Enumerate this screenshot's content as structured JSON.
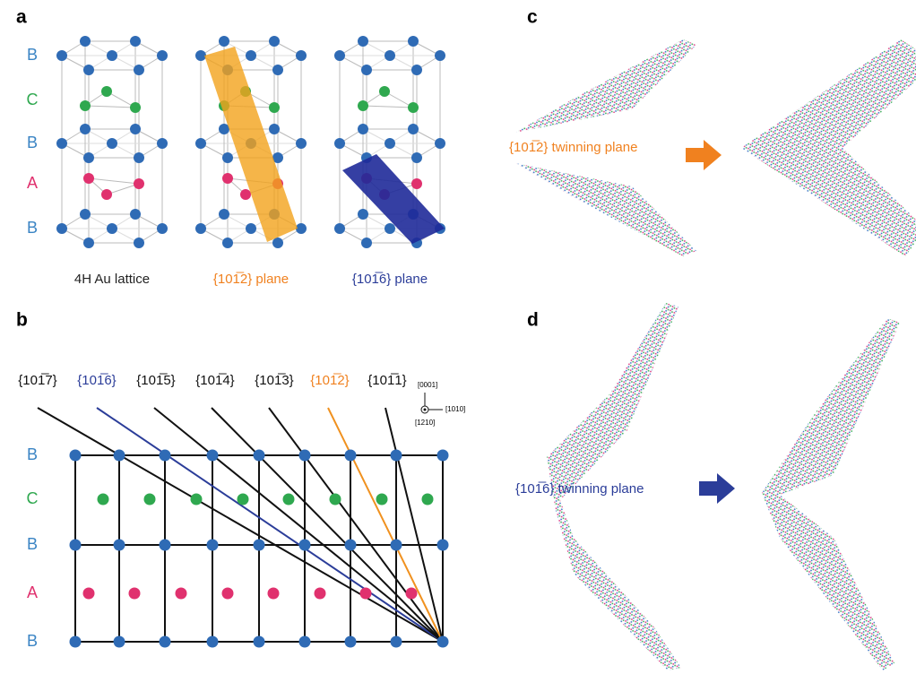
{
  "panel_labels": [
    "a",
    "b",
    "c",
    "d"
  ],
  "panel_a": {
    "layers": [
      "B",
      "C",
      "B",
      "A",
      "B"
    ],
    "captions": [
      "4H Au lattice",
      "{101̅2} plane",
      "{101̅6} plane"
    ]
  },
  "panel_b": {
    "planes": [
      "{101̅7}",
      "{101̅6}",
      "{101̅5}",
      "{101̅4}",
      "{101̅3}",
      "{101̅2}",
      "{101̅1}"
    ],
    "axes": [
      "[0001]",
      "[1010]",
      "[1210]"
    ],
    "layers": [
      "B",
      "C",
      "B",
      "A",
      "B"
    ]
  },
  "panel_c": {
    "label": "{101̅2} twinning plane"
  },
  "panel_d": {
    "label": "{101̅6} twinning plane"
  }
}
